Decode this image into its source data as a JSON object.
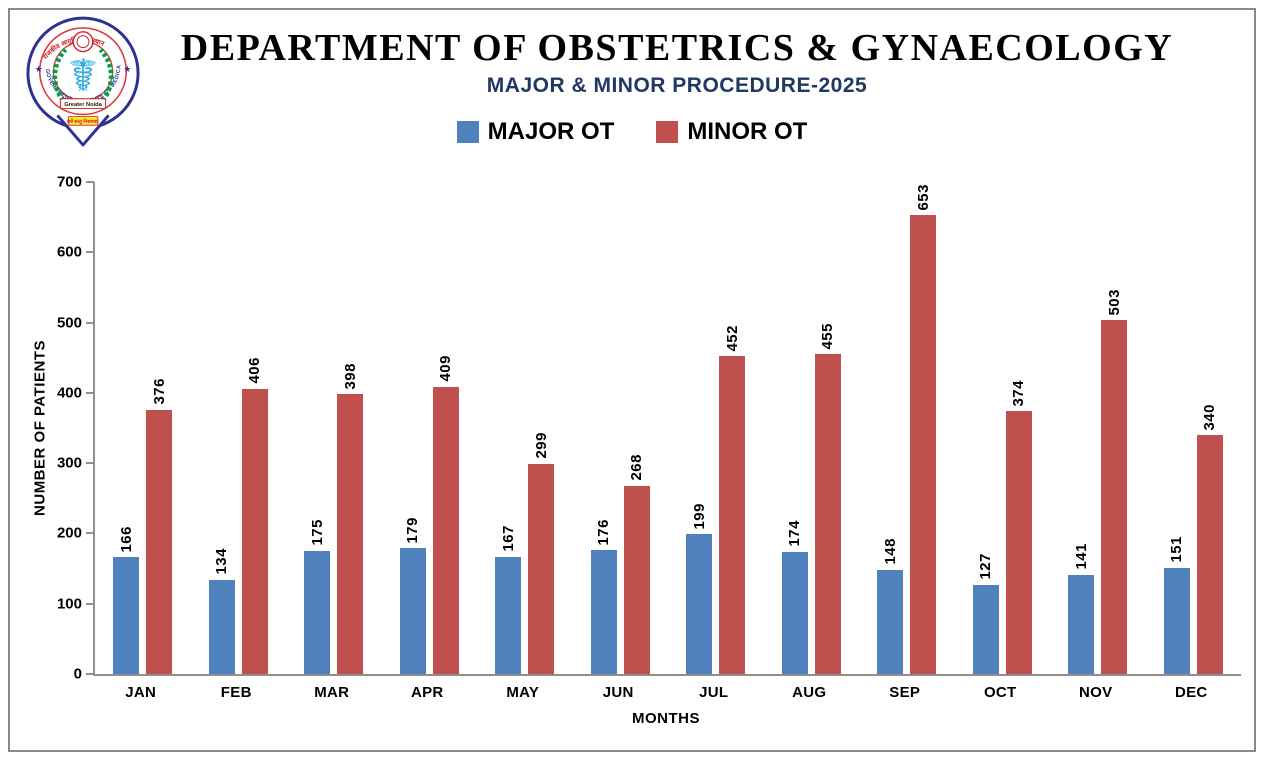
{
  "header": {
    "title": "DEPARTMENT OF OBSTETRICS & GYNAECOLOGY",
    "subtitle": "MAJOR & MINOR PROCEDURE-2025"
  },
  "logo": {
    "ring_text": "GOVERNMENT INSTITUTE OF MEDICAL SCIENCES",
    "top_arc_text": "राजकीय आयुर्विज्ञान संस्थान",
    "banner_text": "Greater Noida",
    "bottom_text": "सर्वे सन्तु निरामया:"
  },
  "colors": {
    "subtitle": "#203864",
    "axis_line": "#8f8f8f",
    "page_border": "#898989"
  },
  "chart_data": {
    "type": "bar",
    "categories": [
      "JAN",
      "FEB",
      "MAR",
      "APR",
      "MAY",
      "JUN",
      "JUL",
      "AUG",
      "SEP",
      "OCT",
      "NOV",
      "DEC"
    ],
    "series": [
      {
        "name": "MAJOR OT",
        "color": "#4F81BD",
        "values": [
          166,
          134,
          175,
          179,
          167,
          176,
          199,
          174,
          148,
          127,
          141,
          151
        ]
      },
      {
        "name": "MINOR OT",
        "color": "#C0504D",
        "values": [
          376,
          406,
          398,
          409,
          299,
          268,
          452,
          455,
          653,
          374,
          503,
          340
        ]
      }
    ],
    "xlabel": "MONTHS",
    "ylabel": "NUMBER OF PATIENTS",
    "ylim": [
      0,
      700
    ],
    "yticks": [
      0,
      100,
      200,
      300,
      400,
      500,
      600,
      700
    ],
    "grid": false,
    "legend_position": "top",
    "data_labels": "rotated-90"
  }
}
